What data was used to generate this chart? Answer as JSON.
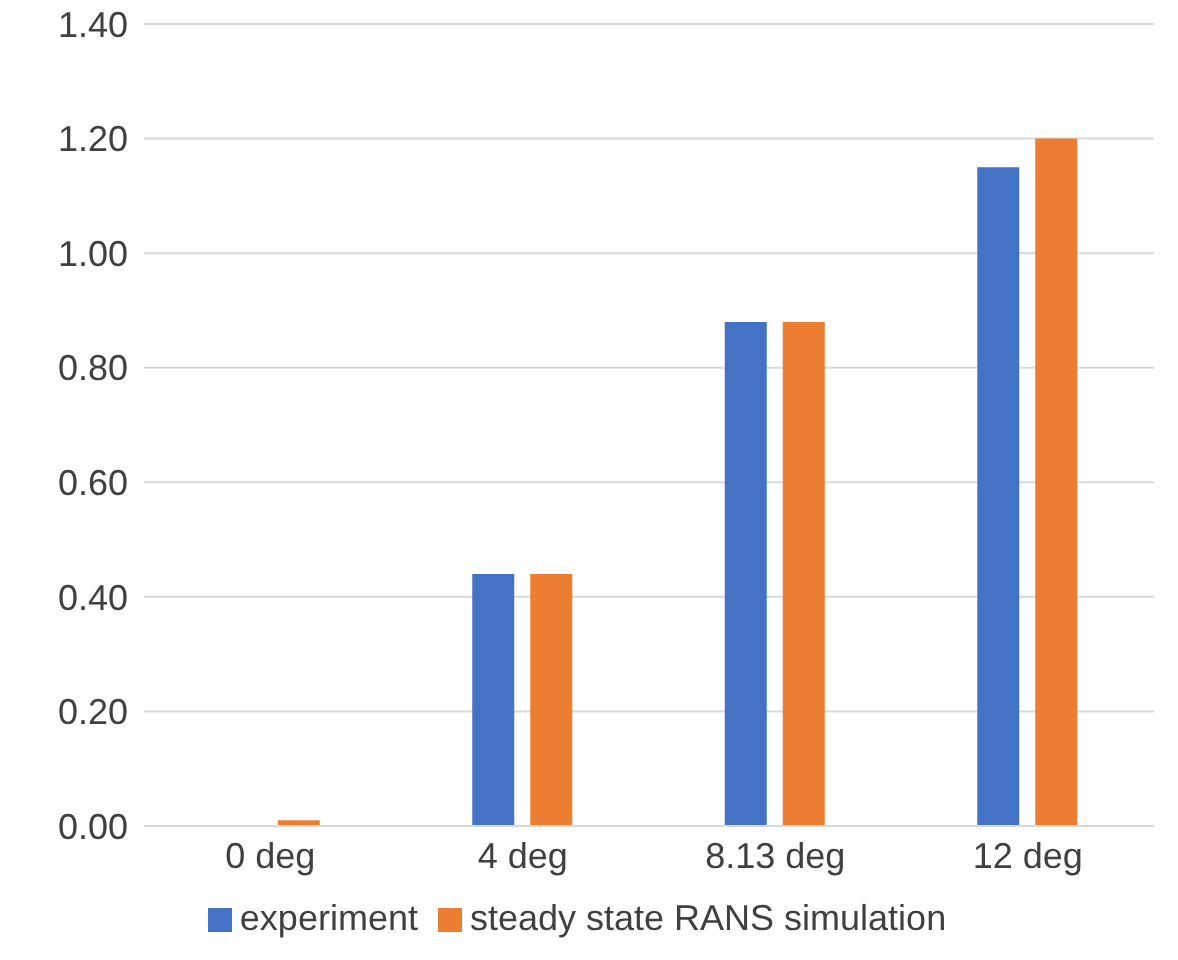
{
  "chart_data": {
    "type": "bar",
    "categories": [
      "0 deg",
      "4 deg",
      "8.13 deg",
      "12 deg"
    ],
    "series": [
      {
        "name": "experiment",
        "color": "#4472c4",
        "values": [
          0,
          0.44,
          0.88,
          1.15
        ]
      },
      {
        "name": "steady state RANS simulation",
        "color": "#ed7d31",
        "values": [
          0.01,
          0.44,
          0.88,
          1.2
        ]
      }
    ],
    "ylim": [
      0,
      1.4
    ],
    "yticks": [
      {
        "value": 0,
        "label": "0.00"
      },
      {
        "value": 0.2,
        "label": "0.20"
      },
      {
        "value": 0.4,
        "label": "0.40"
      },
      {
        "value": 0.6,
        "label": "0.60"
      },
      {
        "value": 0.8,
        "label": "0.80"
      },
      {
        "value": 1,
        "label": "1.00"
      },
      {
        "value": 1.2,
        "label": "1.20"
      },
      {
        "value": 1.4,
        "label": "1.40"
      }
    ],
    "grid": "y",
    "legend": "bottom"
  }
}
